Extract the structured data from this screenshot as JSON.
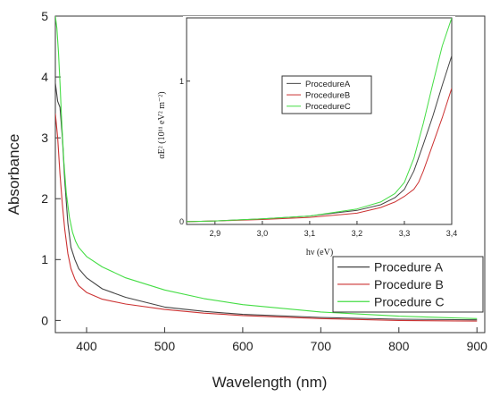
{
  "chart_data": [
    {
      "type": "line",
      "xlabel": "Wavelength (nm)",
      "ylabel": "Absorbance",
      "xlim": [
        360,
        910
      ],
      "ylim": [
        -0.2,
        5
      ],
      "xticks": [
        400,
        500,
        600,
        700,
        800,
        900
      ],
      "xtick_labels": [
        "400",
        "500",
        "600",
        "700",
        "800",
        "900"
      ],
      "yticks": [
        0,
        1,
        2,
        3,
        4,
        5
      ],
      "ytick_labels": [
        "0",
        "1",
        "2",
        "3",
        "4",
        "5"
      ],
      "legend_position": "bottom-right",
      "series": [
        {
          "name": "Procedure A",
          "color": "#444444",
          "x": [
            360,
            363,
            366,
            369,
            372,
            376,
            380,
            385,
            390,
            400,
            420,
            450,
            500,
            550,
            600,
            700,
            800,
            900
          ],
          "y": [
            3.9,
            3.6,
            3.5,
            3.0,
            2.3,
            1.6,
            1.2,
            1.0,
            0.85,
            0.7,
            0.52,
            0.38,
            0.22,
            0.15,
            0.1,
            0.05,
            0.02,
            0.01
          ]
        },
        {
          "name": "Procedure B",
          "color": "#cc3333",
          "x": [
            360,
            363,
            366,
            369,
            372,
            376,
            380,
            385,
            390,
            400,
            420,
            450,
            500,
            550,
            600,
            700,
            800,
            900
          ],
          "y": [
            3.4,
            3.0,
            2.4,
            1.9,
            1.5,
            1.1,
            0.85,
            0.68,
            0.57,
            0.46,
            0.35,
            0.27,
            0.18,
            0.12,
            0.08,
            0.03,
            0.0,
            -0.01
          ]
        },
        {
          "name": "Procedure C",
          "color": "#44dd44",
          "x": [
            360,
            362,
            364,
            366,
            368,
            371,
            374,
            378,
            382,
            386,
            390,
            400,
            420,
            450,
            500,
            550,
            600,
            700,
            800,
            900
          ],
          "y": [
            5.0,
            4.8,
            4.4,
            3.9,
            3.3,
            2.6,
            2.1,
            1.7,
            1.45,
            1.3,
            1.2,
            1.05,
            0.88,
            0.7,
            0.5,
            0.36,
            0.26,
            0.14,
            0.07,
            0.03
          ]
        }
      ]
    },
    {
      "type": "line",
      "xlabel": "hν (eV)",
      "ylabel": "αE² (10¹¹ eV² m⁻²)",
      "xlim": [
        2.84,
        3.4
      ],
      "ylim": [
        -0.02,
        1.45
      ],
      "xticks": [
        2.9,
        3.0,
        3.1,
        3.2,
        3.3,
        3.4
      ],
      "xtick_labels": [
        "2,9",
        "3,0",
        "3,1",
        "3,2",
        "3,3",
        "3,4"
      ],
      "yticks": [
        0,
        1
      ],
      "ytick_labels": [
        "0",
        "1"
      ],
      "legend_position": "top-center",
      "series": [
        {
          "name": "ProcedureA",
          "color": "#444444",
          "x": [
            2.84,
            2.9,
            3.0,
            3.1,
            3.2,
            3.25,
            3.28,
            3.3,
            3.32,
            3.34,
            3.36,
            3.38,
            3.4
          ],
          "y": [
            0.0,
            0.005,
            0.02,
            0.04,
            0.08,
            0.12,
            0.17,
            0.23,
            0.36,
            0.55,
            0.75,
            0.97,
            1.18
          ]
        },
        {
          "name": "ProcedureB",
          "color": "#cc3333",
          "x": [
            2.84,
            2.9,
            3.0,
            3.1,
            3.2,
            3.25,
            3.28,
            3.3,
            3.32,
            3.33,
            3.34,
            3.36,
            3.38,
            3.4
          ],
          "y": [
            0.0,
            0.005,
            0.015,
            0.03,
            0.06,
            0.1,
            0.14,
            0.18,
            0.23,
            0.28,
            0.36,
            0.55,
            0.74,
            0.95
          ]
        },
        {
          "name": "ProcedureC",
          "color": "#44dd44",
          "x": [
            2.84,
            2.9,
            3.0,
            3.1,
            3.2,
            3.25,
            3.28,
            3.3,
            3.32,
            3.34,
            3.36,
            3.38,
            3.4
          ],
          "y": [
            0.0,
            0.005,
            0.02,
            0.04,
            0.09,
            0.14,
            0.2,
            0.28,
            0.45,
            0.7,
            0.98,
            1.25,
            1.45
          ]
        }
      ]
    }
  ]
}
